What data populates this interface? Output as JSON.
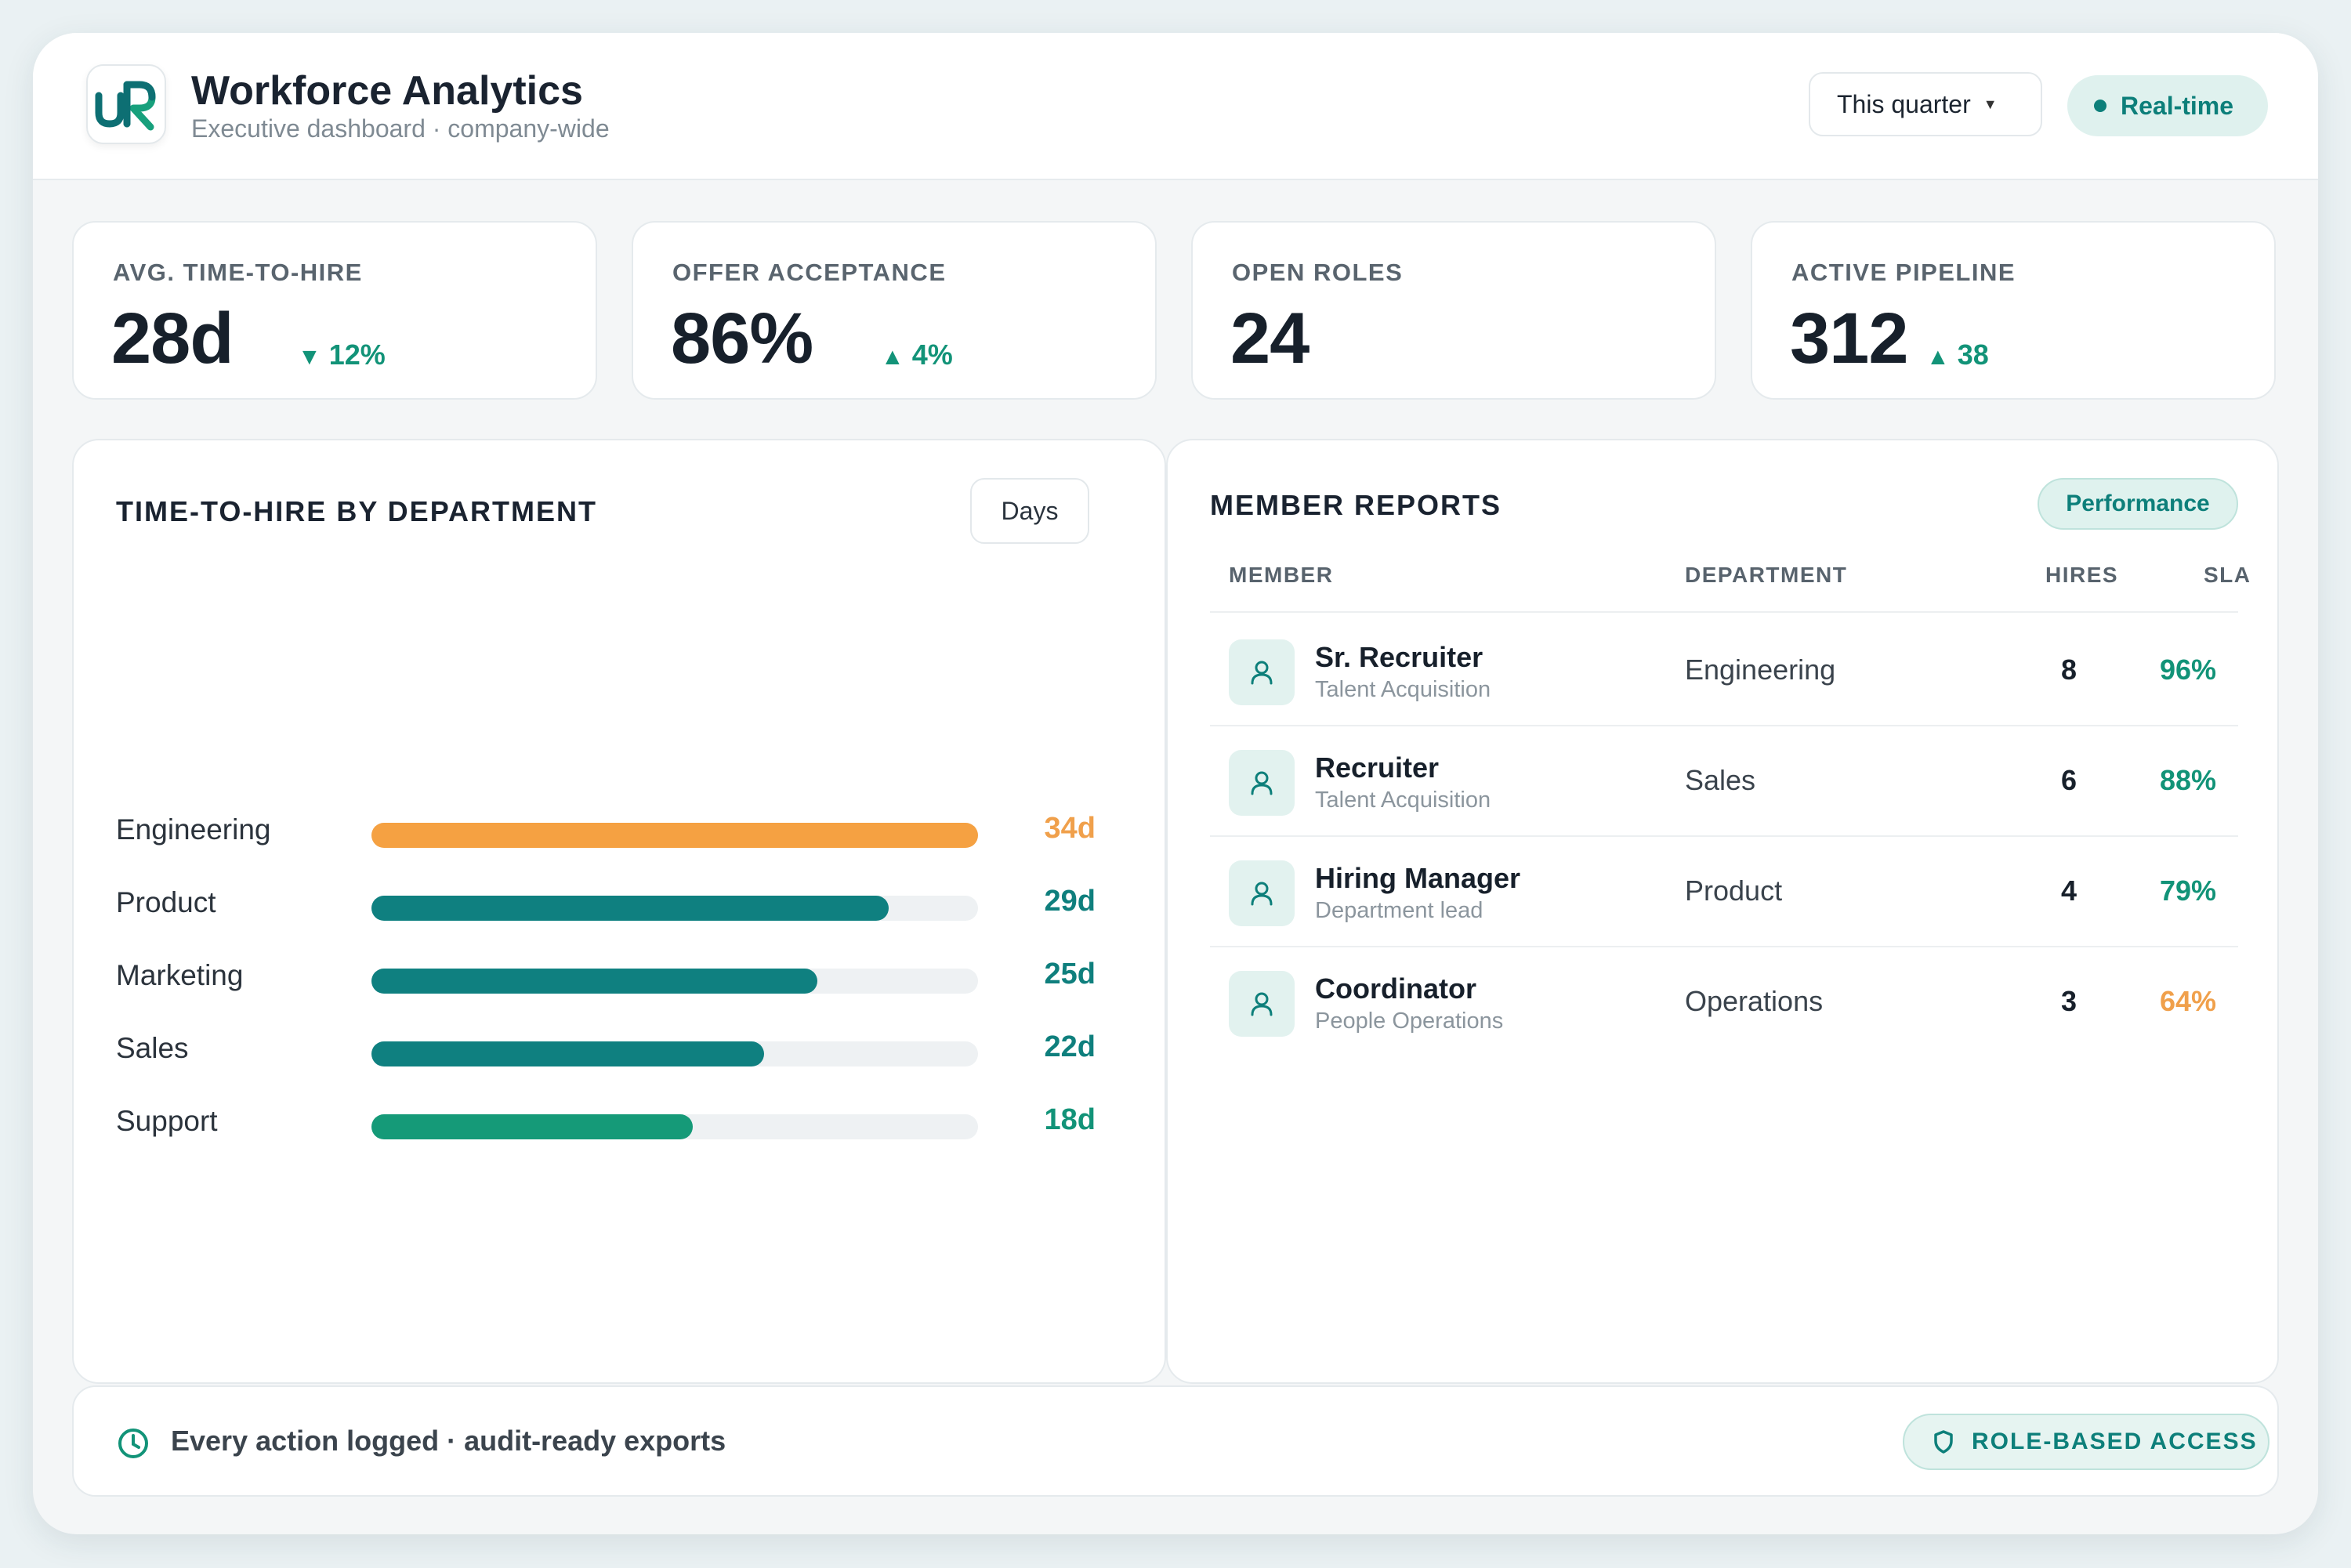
{
  "header": {
    "logo_text": "uR",
    "title": "Workforce Analytics",
    "subtitle": "Executive dashboard · company-wide",
    "period_label": "This quarter",
    "realtime_label": "Real-time"
  },
  "kpis": [
    {
      "label": "AVG. TIME-TO-HIRE",
      "value": "28d",
      "delta": "12%",
      "direction": "down",
      "arrow": "▼"
    },
    {
      "label": "OFFER ACCEPTANCE",
      "value": "86%",
      "delta": "4%",
      "direction": "up",
      "arrow": "▲"
    },
    {
      "label": "OPEN ROLES",
      "value": "24",
      "delta": "",
      "direction": "",
      "arrow": ""
    },
    {
      "label": "ACTIVE PIPELINE",
      "value": "312",
      "delta": "38",
      "direction": "up",
      "arrow": "▲"
    }
  ],
  "time_to_hire": {
    "title": "TIME-TO-HIRE BY DEPARTMENT",
    "unit_button": "Days",
    "max_days": 34,
    "rows": [
      {
        "dept": "Engineering",
        "days": 34,
        "label": "34d",
        "color": "#f5a142",
        "value_color": "#f0a04b"
      },
      {
        "dept": "Product",
        "days": 29,
        "label": "29d",
        "color": "#0f8080",
        "value_color": "#0f7f7d"
      },
      {
        "dept": "Marketing",
        "days": 25,
        "label": "25d",
        "color": "#0f8080",
        "value_color": "#0f7f7d"
      },
      {
        "dept": "Sales",
        "days": 22,
        "label": "22d",
        "color": "#0f8080",
        "value_color": "#0f7f7d"
      },
      {
        "dept": "Support",
        "days": 18,
        "label": "18d",
        "color": "#159a78",
        "value_color": "#129378"
      }
    ]
  },
  "members": {
    "title": "MEMBER REPORTS",
    "badge": "Performance",
    "columns": {
      "member": "MEMBER",
      "department": "DEPARTMENT",
      "hires": "HIRES",
      "sla": "SLA"
    },
    "rows": [
      {
        "name": "Sr. Recruiter",
        "role": "Talent Acquisition",
        "department": "Engineering",
        "hires": "8",
        "sla": "96%",
        "sla_color": "#129378"
      },
      {
        "name": "Recruiter",
        "role": "Talent Acquisition",
        "department": "Sales",
        "hires": "6",
        "sla": "88%",
        "sla_color": "#129378"
      },
      {
        "name": "Hiring Manager",
        "role": "Department lead",
        "department": "Product",
        "hires": "4",
        "sla": "79%",
        "sla_color": "#129378"
      },
      {
        "name": "Coordinator",
        "role": "People Operations",
        "department": "Operations",
        "hires": "3",
        "sla": "64%",
        "sla_color": "#f0a04b"
      }
    ]
  },
  "footer": {
    "note": "Every action logged · audit-ready exports",
    "access_badge": "ROLE-BASED ACCESS"
  },
  "colors": {
    "accent": "#0d7f7a",
    "positive": "#129378",
    "warning": "#f0a04b"
  }
}
